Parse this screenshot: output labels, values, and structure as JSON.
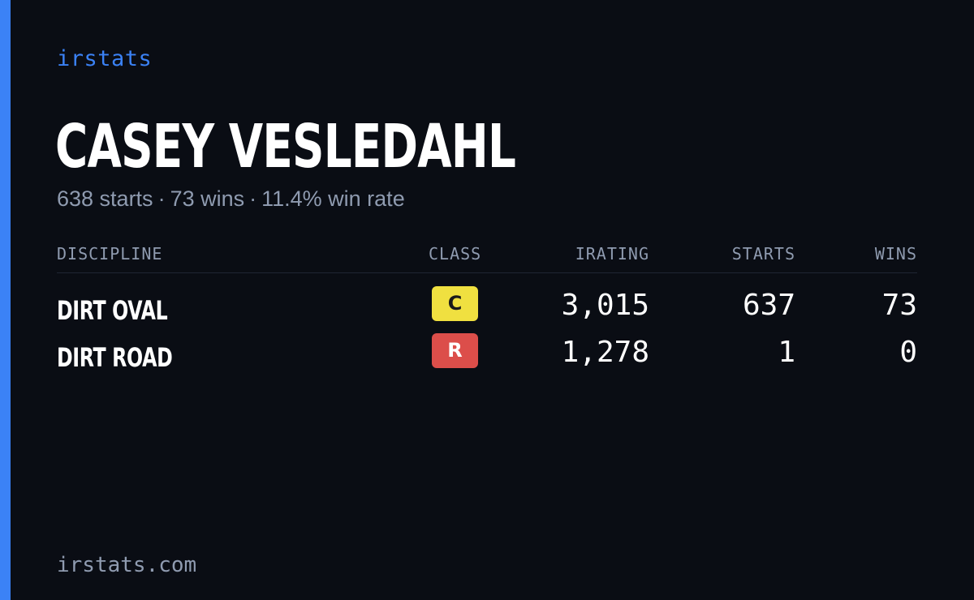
{
  "brand": "irstats",
  "driver": {
    "name": "CASEY VESLEDAHL",
    "summary": {
      "starts": "638 starts",
      "wins": "73 wins",
      "win_rate": "11.4% win rate",
      "separator": "·"
    }
  },
  "table": {
    "headers": {
      "discipline": "DISCIPLINE",
      "class": "CLASS",
      "irating": "IRATING",
      "starts": "STARTS",
      "wins": "WINS"
    },
    "rows": [
      {
        "discipline": "DIRT OVAL",
        "class": "C",
        "class_color": "#f0e040",
        "irating": "3,015",
        "starts": "637",
        "wins": "73"
      },
      {
        "discipline": "DIRT ROAD",
        "class": "R",
        "class_color": "#dc4e4a",
        "irating": "1,278",
        "starts": "1",
        "wins": "0"
      }
    ]
  },
  "footer": "irstats.com",
  "colors": {
    "accent": "#3b82f6",
    "background": "#0a0d14",
    "muted_text": "#8f9bb0"
  }
}
